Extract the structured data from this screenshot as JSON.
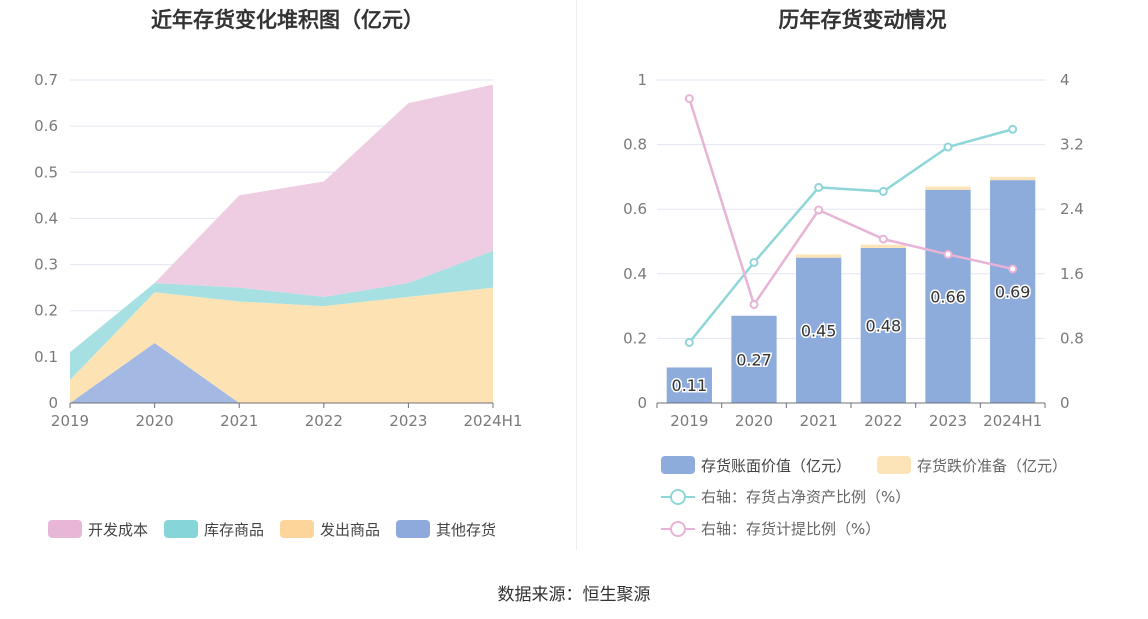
{
  "chart_data": [
    {
      "type": "area",
      "stacked": true,
      "title": "近年存货变化堆积图（亿元）",
      "categories": [
        "2019",
        "2020",
        "2021",
        "2022",
        "2023",
        "2024H1"
      ],
      "yticks": [
        "0",
        "0.1",
        "0.2",
        "0.3",
        "0.4",
        "0.5",
        "0.6",
        "0.7"
      ],
      "ylim": [
        0,
        0.7
      ],
      "series": [
        {
          "name": "其他存货",
          "color": "#a3b8e3",
          "values": [
            0.0,
            0.13,
            0.0,
            0.0,
            0.0,
            0.0
          ]
        },
        {
          "name": "发出商品",
          "color": "#fde3b4",
          "values": [
            0.05,
            0.11,
            0.22,
            0.21,
            0.23,
            0.25
          ]
        },
        {
          "name": "库存商品",
          "color": "#a6e0e2",
          "values": [
            0.06,
            0.02,
            0.03,
            0.02,
            0.03,
            0.08
          ]
        },
        {
          "name": "开发成本",
          "color": "#eecde3",
          "values": [
            0.0,
            0.0,
            0.2,
            0.25,
            0.39,
            0.36
          ]
        }
      ],
      "legend": [
        {
          "name": "开发成本",
          "color": "#e8b7d7"
        },
        {
          "name": "库存商品",
          "color": "#86d6d9"
        },
        {
          "name": "发出商品",
          "color": "#fdd49a"
        },
        {
          "name": "其他存货",
          "color": "#8ea9dc"
        }
      ],
      "grid": true,
      "legend_position": "bottom"
    },
    {
      "type": "bar",
      "title": "历年存货变动情况",
      "categories": [
        "2019",
        "2020",
        "2021",
        "2022",
        "2023",
        "2024H1"
      ],
      "yticks_left": [
        "0",
        "0.2",
        "0.4",
        "0.6",
        "0.8",
        "1"
      ],
      "ylim_left": [
        0,
        1
      ],
      "yticks_right": [
        "0",
        "0.8",
        "1.6",
        "2.4",
        "3.2",
        "4"
      ],
      "ylim_right": [
        0,
        4
      ],
      "bars": [
        {
          "name": "存货账面价值（亿元）",
          "color": "#8dabdb",
          "values": [
            0.11,
            0.27,
            0.45,
            0.48,
            0.66,
            0.69
          ],
          "labels": [
            "0.11",
            "0.27",
            "0.45",
            "0.48",
            "0.66",
            "0.69"
          ]
        },
        {
          "name": "存货跌价准备（亿元）",
          "color": "#fde3b8",
          "values": [
            0,
            0,
            0.01,
            0.01,
            0.01,
            0.01
          ]
        }
      ],
      "lines": [
        {
          "name": "右轴：存货占净资产比例（%）",
          "color": "#8fd6d8",
          "axis": "right",
          "values": [
            0.75,
            1.74,
            2.67,
            2.62,
            3.17,
            3.39
          ]
        },
        {
          "name": "右轴：存货计提比例（%）",
          "color": "#e8b3d6",
          "axis": "right",
          "values": [
            3.77,
            1.22,
            2.39,
            2.03,
            1.84,
            1.66
          ]
        }
      ],
      "grid": true,
      "legend_position": "bottom"
    }
  ],
  "source": "数据来源：恒生聚源"
}
